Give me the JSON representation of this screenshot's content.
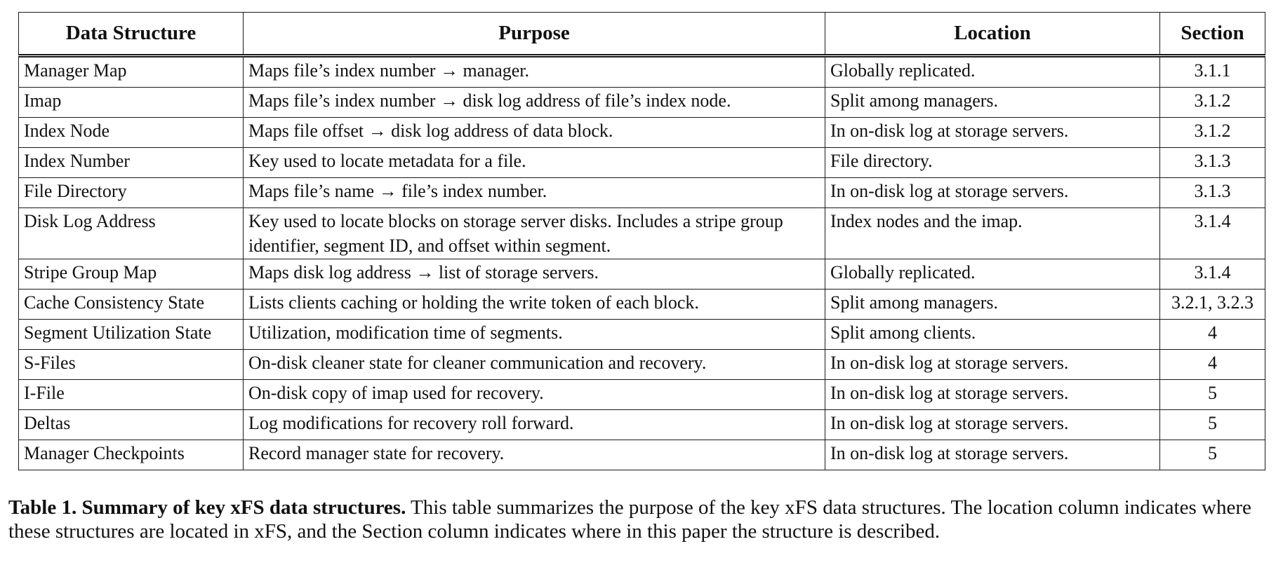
{
  "table": {
    "columns": [
      "Data Structure",
      "Purpose",
      "Location",
      "Section"
    ],
    "rows": [
      {
        "structure": "Manager Map",
        "purpose": "Maps file’s index number → manager.",
        "location": "Globally replicated.",
        "section": "3.1.1"
      },
      {
        "structure": "Imap",
        "purpose": "Maps file’s index number → disk log address of file’s index node.",
        "location": "Split among managers.",
        "section": "3.1.2"
      },
      {
        "structure": "Index Node",
        "purpose": "Maps file offset → disk log address of data block.",
        "location": "In on-disk log at storage servers.",
        "section": "3.1.2"
      },
      {
        "structure": "Index Number",
        "purpose": "Key used to locate metadata for a file.",
        "location": "File directory.",
        "section": "3.1.3"
      },
      {
        "structure": "File Directory",
        "purpose": "Maps file’s name → file’s index number.",
        "location": "In on-disk log at storage servers.",
        "section": "3.1.3"
      },
      {
        "structure": "Disk Log Address",
        "purpose": "Key used to locate blocks on storage server disks. Includes a stripe group identifier, segment ID, and offset within segment.",
        "location": "Index nodes and the imap.",
        "section": "3.1.4"
      },
      {
        "structure": "Stripe Group Map",
        "purpose": "Maps disk log address → list of storage servers.",
        "location": "Globally replicated.",
        "section": "3.1.4"
      },
      {
        "structure": "Cache Consistency State",
        "purpose": "Lists clients caching or holding the write token of each block.",
        "location": "Split among managers.",
        "section": "3.2.1, 3.2.3"
      },
      {
        "structure": "Segment Utilization State",
        "purpose": "Utilization, modification time of segments.",
        "location": "Split among clients.",
        "section": "4"
      },
      {
        "structure": "S-Files",
        "purpose": "On-disk cleaner state for cleaner communication and recovery.",
        "location": "In on-disk log at storage servers.",
        "section": "4"
      },
      {
        "structure": "I-File",
        "purpose": "On-disk copy of imap used for recovery.",
        "location": "In on-disk log at storage servers.",
        "section": "5"
      },
      {
        "structure": "Deltas",
        "purpose": "Log modifications for recovery roll forward.",
        "location": "In on-disk log at storage servers.",
        "section": "5"
      },
      {
        "structure": "Manager Checkpoints",
        "purpose": "Record manager state for recovery.",
        "location": "In on-disk log at storage servers.",
        "section": "5"
      }
    ]
  },
  "caption": {
    "label": "Table 1. Summary of key xFS data structures.",
    "text": " This table summarizes the purpose of the key xFS data structures. The location column indicates where these structures are located in xFS, and the Section column indicates where in this paper the structure is described."
  }
}
